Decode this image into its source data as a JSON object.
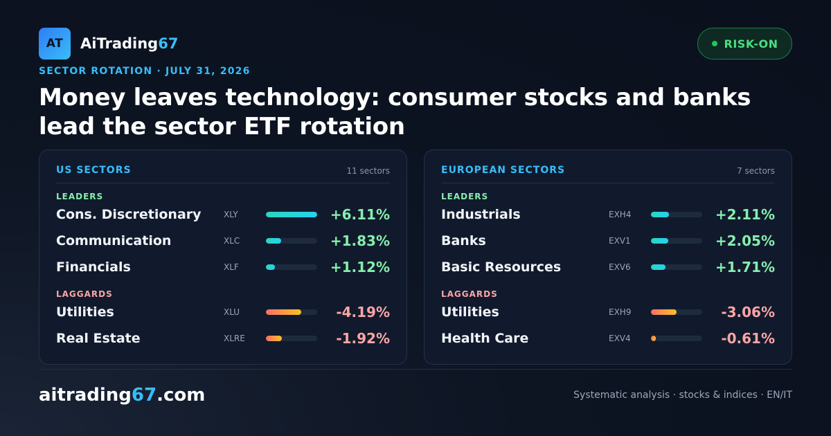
{
  "brand": {
    "logo_text": "AT",
    "name_main": "AiTrading",
    "name_accent": "67"
  },
  "badge": {
    "label": "RISK-ON"
  },
  "kicker": "SECTOR ROTATION · JULY 31, 2026",
  "headline": "Money leaves technology: consumer stocks and banks lead the sector ETF rotation",
  "colors": {
    "accent": "#38bdf8",
    "positive": "#86efac",
    "negative": "#fca5a5",
    "badge_green": "#4ade80"
  },
  "panels": [
    {
      "title": "US SECTORS",
      "count": "11 sectors",
      "leaders_label": "LEADERS",
      "laggards_label": "LAGGARDS",
      "leaders": [
        {
          "name": "Cons. Discretionary",
          "ticker": "XLY",
          "change": "+6.11%",
          "level": 1.0
        },
        {
          "name": "Communication",
          "ticker": "XLC",
          "change": "+1.83%",
          "level": 0.3
        },
        {
          "name": "Financials",
          "ticker": "XLF",
          "change": "+1.12%",
          "level": 0.18
        }
      ],
      "laggards": [
        {
          "name": "Utilities",
          "ticker": "XLU",
          "change": "-4.19%",
          "level": 0.69
        },
        {
          "name": "Real Estate",
          "ticker": "XLRE",
          "change": "-1.92%",
          "level": 0.31
        }
      ]
    },
    {
      "title": "EUROPEAN SECTORS",
      "count": "7 sectors",
      "leaders_label": "LEADERS",
      "laggards_label": "LAGGARDS",
      "leaders": [
        {
          "name": "Industrials",
          "ticker": "EXH4",
          "change": "+2.11%",
          "level": 0.35
        },
        {
          "name": "Banks",
          "ticker": "EXV1",
          "change": "+2.05%",
          "level": 0.34
        },
        {
          "name": "Basic Resources",
          "ticker": "EXV6",
          "change": "+1.71%",
          "level": 0.28
        }
      ],
      "laggards": [
        {
          "name": "Utilities",
          "ticker": "EXH9",
          "change": "-3.06%",
          "level": 0.5
        },
        {
          "name": "Health Care",
          "ticker": "EXV4",
          "change": "-0.61%",
          "level": 0.1
        }
      ]
    }
  ],
  "footer": {
    "site_main": "aitrading",
    "site_accent": "67",
    "site_suffix": ".com",
    "tagline": "Systematic analysis · stocks & indices · EN/IT"
  }
}
